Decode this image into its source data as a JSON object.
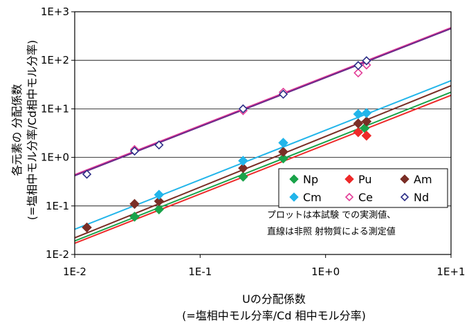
{
  "chart_data": {
    "type": "scatter",
    "title": "",
    "xlabel_line1": "Uの分配係数",
    "xlabel_line2": "(=塩相中モル分率/Cd 相中モル分率)",
    "ylabel_line1": "各元素の 分配係数",
    "ylabel_line2": "(=塩相中モル分率/Cd相中モル分率)",
    "xscale": "log",
    "yscale": "log",
    "xlim": [
      0.01,
      10
    ],
    "ylim": [
      0.01,
      1000
    ],
    "x_ticks": [
      0.01,
      0.1,
      1,
      10
    ],
    "x_tick_labels": [
      "1E-2",
      "1E-1",
      "1E+0",
      "1E+1"
    ],
    "y_ticks": [
      0.01,
      0.1,
      1,
      10,
      100,
      1000
    ],
    "y_tick_labels": [
      "1E-2",
      "1E-1",
      "1E+0",
      "1E+1",
      "1E+2",
      "1E+3"
    ],
    "grid": "horizontal-major",
    "legend_position": "lower-right",
    "note_line1": "プロットは本試験 での実測値、",
    "note_line2": "直線は非照 射物質による測定値",
    "series": [
      {
        "name": "Np",
        "marker": "diamond-filled",
        "color": "#1aa34a",
        "points": [
          [
            0.03,
            0.06
          ],
          [
            0.047,
            0.085
          ],
          [
            0.22,
            0.4
          ],
          [
            0.46,
            0.95
          ],
          [
            2.05,
            4.0
          ]
        ],
        "fit": [
          [
            0.01,
            0.019
          ],
          [
            10,
            22
          ]
        ]
      },
      {
        "name": "Pu",
        "marker": "diamond-filled",
        "color": "#ee2a2a",
        "points": [
          [
            1.82,
            3.3
          ],
          [
            2.12,
            2.8
          ]
        ],
        "fit": [
          [
            0.01,
            0.017
          ],
          [
            10,
            19
          ]
        ]
      },
      {
        "name": "Am",
        "marker": "diamond-filled",
        "color": "#7a2e26",
        "points": [
          [
            0.0125,
            0.036
          ],
          [
            0.03,
            0.11
          ],
          [
            0.047,
            0.125
          ],
          [
            0.22,
            0.6
          ],
          [
            0.46,
            1.3
          ],
          [
            1.82,
            5.0
          ],
          [
            2.12,
            5.5
          ]
        ],
        "fit": [
          [
            0.01,
            0.022
          ],
          [
            10,
            30
          ]
        ]
      },
      {
        "name": "Cm",
        "marker": "diamond-filled",
        "color": "#22b5ea",
        "points": [
          [
            0.047,
            0.17
          ],
          [
            0.22,
            0.85
          ],
          [
            0.46,
            2.0
          ],
          [
            1.82,
            7.8
          ],
          [
            2.12,
            8.2
          ]
        ],
        "fit": [
          [
            0.01,
            0.033
          ],
          [
            10,
            38
          ]
        ]
      },
      {
        "name": "Ce",
        "marker": "diamond-open",
        "color": "#e23a96",
        "points": [
          [
            0.03,
            1.45
          ],
          [
            0.22,
            9.2
          ],
          [
            0.46,
            22
          ],
          [
            1.82,
            55
          ],
          [
            2.12,
            80
          ]
        ],
        "fit": [
          [
            0.01,
            0.44
          ],
          [
            10,
            470
          ]
        ]
      },
      {
        "name": "Nd",
        "marker": "diamond-open",
        "color": "#2b2d86",
        "points": [
          [
            0.0125,
            0.45
          ],
          [
            0.03,
            1.35
          ],
          [
            0.047,
            1.8
          ],
          [
            0.22,
            10
          ],
          [
            0.46,
            20
          ],
          [
            1.82,
            78
          ],
          [
            2.12,
            98
          ]
        ],
        "fit": [
          [
            0.01,
            0.42
          ],
          [
            10,
            450
          ]
        ]
      }
    ],
    "fit_line_colors": {
      "Np": "#1aa34a",
      "Pu": "#ee2a2a",
      "Am": "#7a2e26",
      "Cm": "#22b5ea",
      "Ce": "#e23a96",
      "Nd": "#6a2a8a"
    }
  }
}
